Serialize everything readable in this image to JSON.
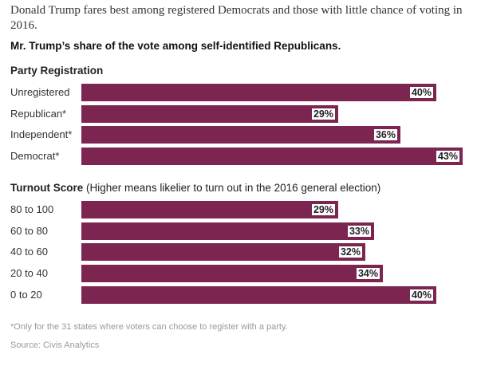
{
  "header": {
    "title": "Donald Trump fares best among registered Democrats and those with little chance of voting in 2016.",
    "subtitle": "Mr. Trump’s share of the vote among self-identified Republicans."
  },
  "chart_data": [
    {
      "type": "bar",
      "orientation": "horizontal",
      "title": "Party Registration",
      "categories": [
        "Unregistered",
        "Republican*",
        "Independent*",
        "Democrat*"
      ],
      "values": [
        40,
        29,
        36,
        43
      ],
      "value_labels": [
        "40%",
        "29%",
        "36%",
        "43%"
      ],
      "unit": "%",
      "color": "#7c2550",
      "xlim": [
        0,
        43
      ]
    },
    {
      "type": "bar",
      "orientation": "horizontal",
      "title": "Turnout Score",
      "title_note": "(Higher means likelier to turn out in the 2016 general election)",
      "categories": [
        "80 to 100",
        "60 to 80",
        "40 to 60",
        "20 to 40",
        "0 to 20"
      ],
      "values": [
        29,
        33,
        32,
        34,
        40
      ],
      "value_labels": [
        "29%",
        "33%",
        "32%",
        "34%",
        "40%"
      ],
      "unit": "%",
      "color": "#7c2550",
      "xlim": [
        0,
        43
      ]
    }
  ],
  "footer": {
    "note": "*Only for the 31 states where voters can choose to register with a party.",
    "source": "Source: Civis Analytics"
  }
}
